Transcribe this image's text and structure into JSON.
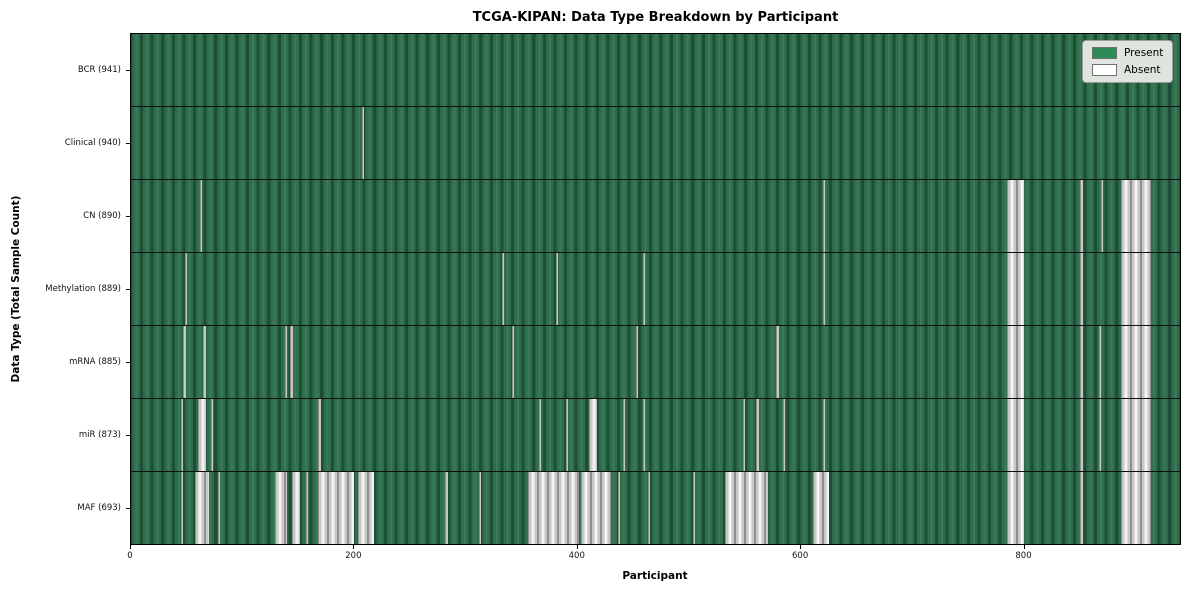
{
  "figure": {
    "title": "TCGA-KIPAN: Data Type Breakdown by Participant",
    "xlabel": "Participant",
    "ylabel": "Data Type (Total Sample Count)"
  },
  "legend": {
    "items": [
      {
        "label": "Present",
        "color": "#2e8b57"
      },
      {
        "label": "Absent",
        "color": "#ffffff"
      }
    ]
  },
  "chart_data": {
    "type": "heatmap",
    "title": "TCGA-KIPAN: Data Type Breakdown by Participant",
    "xlabel": "Participant",
    "ylabel": "Data Type (Total Sample Count)",
    "legend_position": "upper right",
    "legend_entries": [
      "Present",
      "Absent"
    ],
    "colors": {
      "present": "#2e8b57",
      "absent": "#ffffff"
    },
    "n_participants": 941,
    "x_range": [
      0,
      941
    ],
    "x_ticks": [
      0,
      200,
      400,
      600,
      800
    ],
    "rows": [
      {
        "label": "BCR (941)",
        "data_type": "BCR",
        "total_sample_count": 941,
        "absent_ranges": []
      },
      {
        "label": "Clinical (940)",
        "data_type": "Clinical",
        "total_sample_count": 940,
        "absent_ranges": [
          [
            207,
            209
          ]
        ]
      },
      {
        "label": "CN (890)",
        "data_type": "CN",
        "total_sample_count": 890,
        "absent_ranges": [
          [
            62,
            64
          ],
          [
            621,
            623
          ],
          [
            786,
            801
          ],
          [
            851,
            854
          ],
          [
            870,
            872
          ],
          [
            888,
            915
          ]
        ]
      },
      {
        "label": "Methylation (889)",
        "data_type": "Methylation",
        "total_sample_count": 889,
        "absent_ranges": [
          [
            48,
            50
          ],
          [
            333,
            335
          ],
          [
            381,
            383
          ],
          [
            459,
            461
          ],
          [
            621,
            623
          ],
          [
            786,
            801
          ],
          [
            851,
            854
          ],
          [
            888,
            915
          ]
        ]
      },
      {
        "label": "mRNA (885)",
        "data_type": "mRNA",
        "total_sample_count": 885,
        "absent_ranges": [
          [
            47,
            49
          ],
          [
            65,
            67
          ],
          [
            138,
            140
          ],
          [
            143,
            145
          ],
          [
            342,
            344
          ],
          [
            453,
            455
          ],
          [
            579,
            581
          ],
          [
            786,
            801
          ],
          [
            851,
            854
          ],
          [
            868,
            870
          ],
          [
            888,
            915
          ]
        ]
      },
      {
        "label": "miR (873)",
        "data_type": "miR",
        "total_sample_count": 873,
        "absent_ranges": [
          [
            45,
            47
          ],
          [
            60,
            67
          ],
          [
            72,
            74
          ],
          [
            168,
            170
          ],
          [
            366,
            368
          ],
          [
            390,
            392
          ],
          [
            411,
            418
          ],
          [
            441,
            443
          ],
          [
            459,
            461
          ],
          [
            549,
            551
          ],
          [
            561,
            563
          ],
          [
            585,
            587
          ],
          [
            621,
            623
          ],
          [
            786,
            801
          ],
          [
            851,
            854
          ],
          [
            868,
            870
          ],
          [
            888,
            915
          ]
        ]
      },
      {
        "label": "MAF (693)",
        "data_type": "MAF",
        "total_sample_count": 693,
        "absent_ranges": [
          [
            45,
            47
          ],
          [
            57,
            70
          ],
          [
            78,
            80
          ],
          [
            129,
            140
          ],
          [
            144,
            152
          ],
          [
            157,
            159
          ],
          [
            168,
            200
          ],
          [
            204,
            218
          ],
          [
            282,
            284
          ],
          [
            312,
            314
          ],
          [
            356,
            402
          ],
          [
            404,
            431
          ],
          [
            437,
            439
          ],
          [
            464,
            466
          ],
          [
            504,
            506
          ],
          [
            533,
            571
          ],
          [
            612,
            626
          ],
          [
            786,
            801
          ],
          [
            851,
            854
          ],
          [
            888,
            915
          ]
        ]
      }
    ]
  }
}
